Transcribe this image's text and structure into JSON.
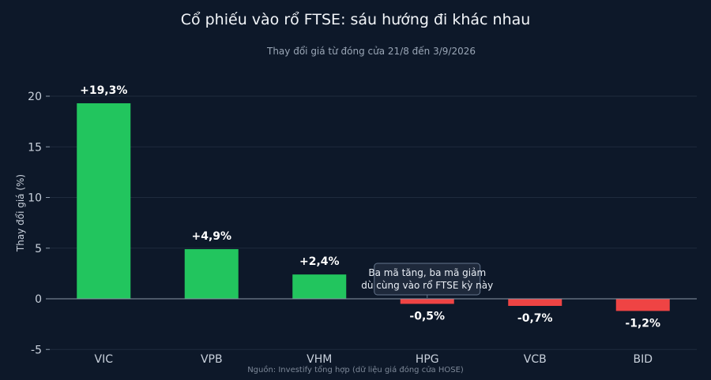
{
  "chart_data": {
    "type": "bar",
    "title": "Cổ phiếu vào rổ FTSE: sáu hướng đi khác nhau",
    "subtitle": "Thay đổi giá từ đóng cửa 21/8 đến 3/9/2026",
    "ylabel": "Thay đổi giá (%)",
    "xlabel": "",
    "categories": [
      "VIC",
      "VPB",
      "VHM",
      "HPG",
      "VCB",
      "BID"
    ],
    "values": [
      19.3,
      4.9,
      2.4,
      -0.5,
      -0.7,
      -1.2
    ],
    "data_labels": [
      "+19,3%",
      "+4,9%",
      "+2,4%",
      "-0,5%",
      "-0,7%",
      "-1,2%"
    ],
    "ylim": [
      -5,
      22
    ],
    "yticks": [
      -5,
      0,
      5,
      10,
      15,
      20
    ],
    "ytick_labels": [
      "-5",
      "0",
      "5",
      "10",
      "15",
      "20"
    ],
    "grid": true,
    "annotation": {
      "lines": [
        "Ba mã tăng, ba mã giảm",
        "dù cùng vào rổ FTSE kỳ này"
      ],
      "target_category": "HPG"
    },
    "colors": {
      "positive": "#22c55e",
      "negative": "#ef4444",
      "background": "#0d1829",
      "grid": "#1f2b3d",
      "zero_line": "#8a97a8",
      "annotation_bg": "#1e293b",
      "annotation_border": "#64748b"
    },
    "source": "Nguồn: Investify tổng hợp (dữ liệu giá đóng cửa HOSE)"
  }
}
